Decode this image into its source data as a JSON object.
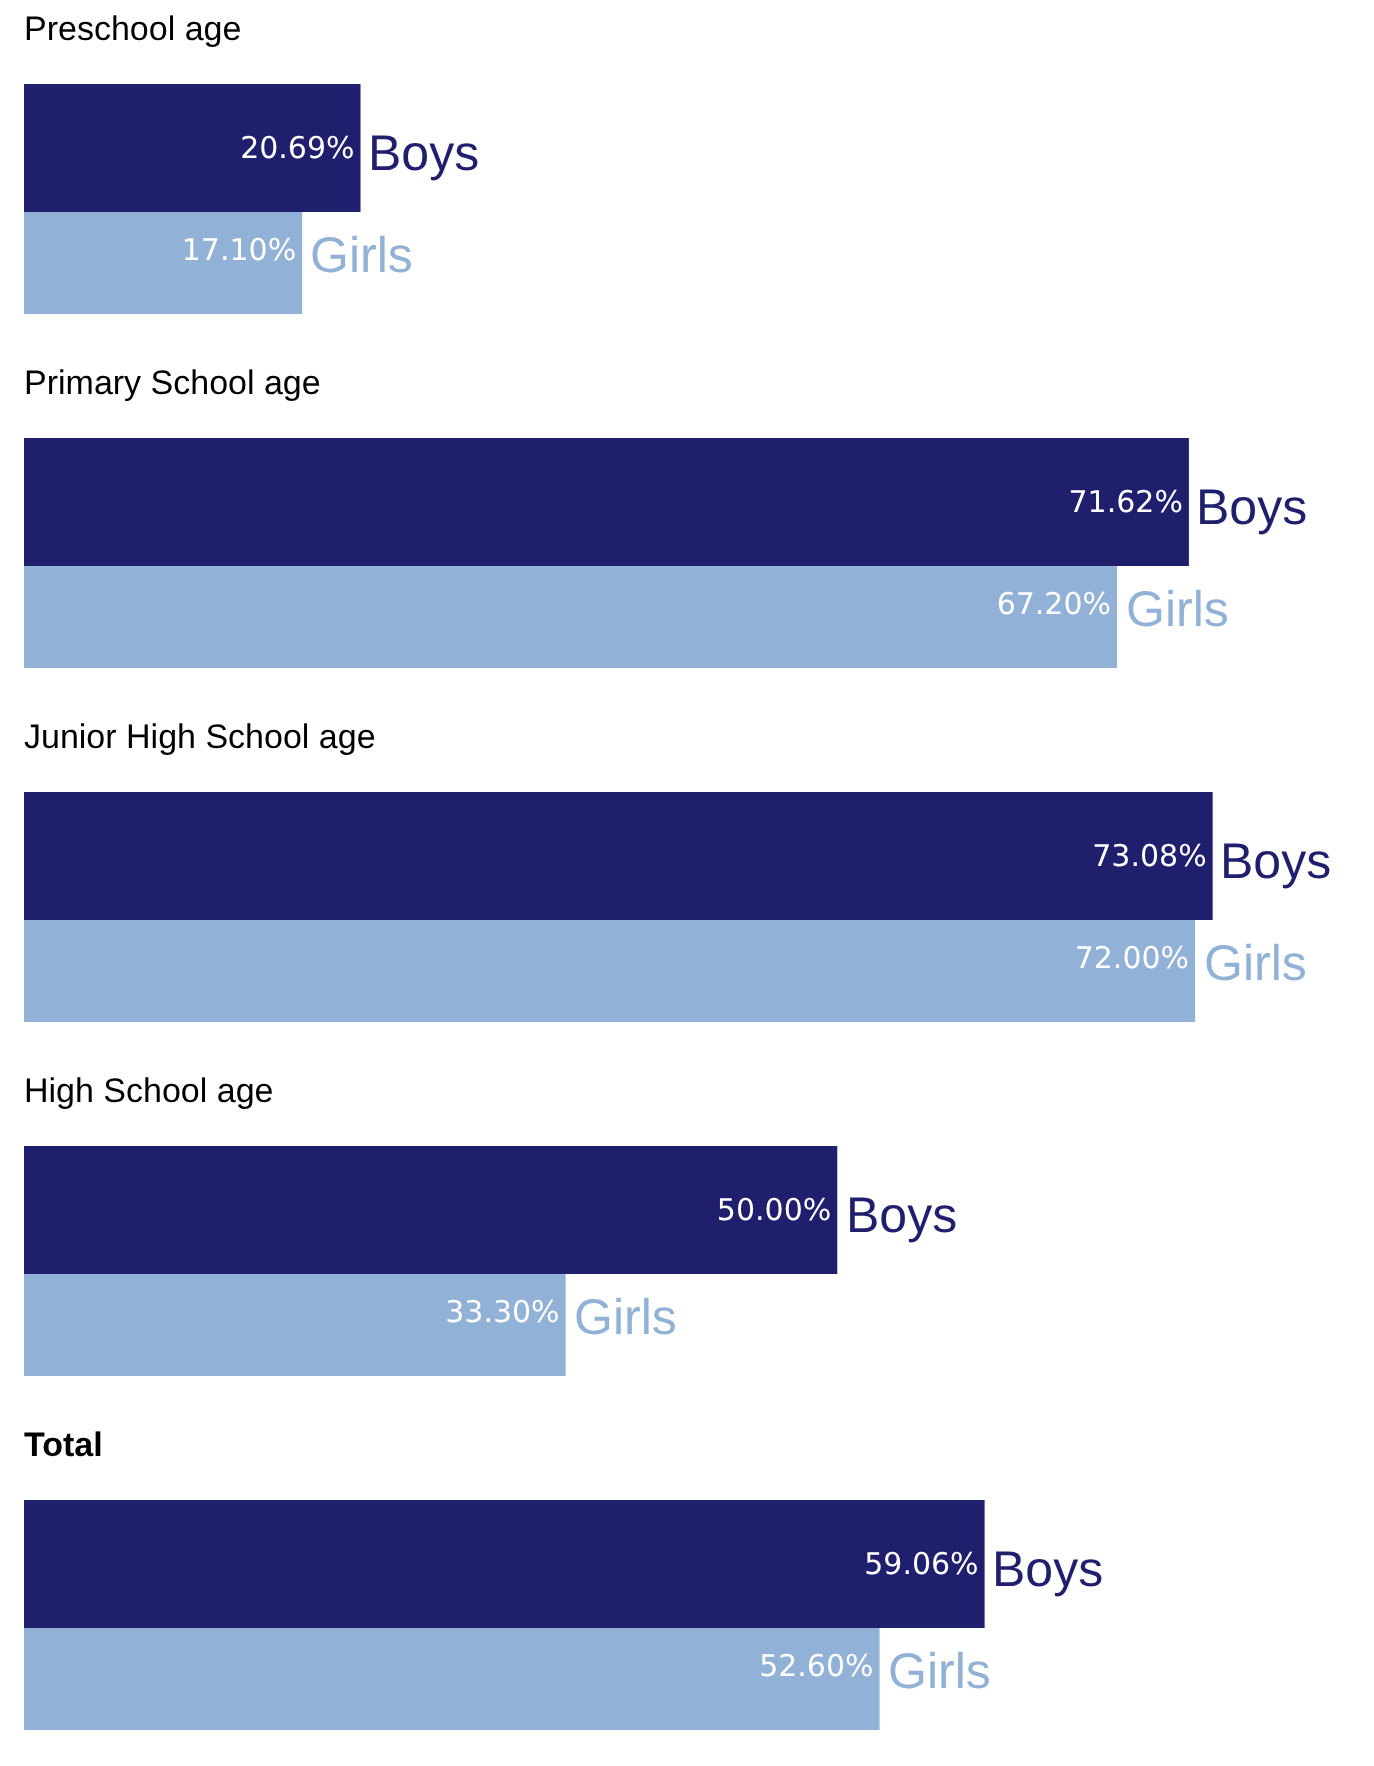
{
  "chart_data": {
    "type": "bar",
    "orientation": "horizontal",
    "categories": [
      "Preschool age",
      "Primary School age",
      "Junior High School age",
      "High School age",
      "Total"
    ],
    "series": [
      {
        "name": "Boys",
        "color": "#1f1f6e",
        "values": [
          20.69,
          71.62,
          73.08,
          50.0,
          59.06
        ],
        "value_labels": [
          "20.69%",
          "71.62%",
          "73.08%",
          "50.00%",
          "59.06%"
        ]
      },
      {
        "name": "Girls",
        "color": "#92b1d6",
        "values": [
          17.1,
          67.2,
          72.0,
          33.3,
          52.6
        ],
        "value_labels": [
          "17.10%",
          "67.20%",
          "72.00%",
          "33.30%",
          "52.60%"
        ]
      }
    ],
    "xlim": [
      0,
      83
    ],
    "legend": false
  }
}
